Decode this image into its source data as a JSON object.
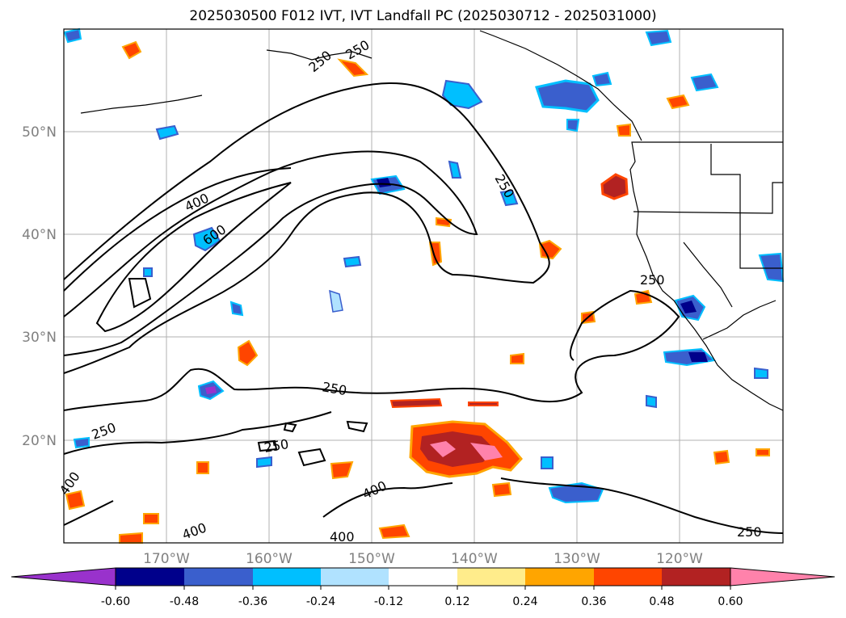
{
  "title": "2025030500 F012 IVT, IVT Landfall PC (2025030712 - 2025031000)",
  "map": {
    "lat_labels": [
      "50°N",
      "40°N",
      "30°N",
      "20°N"
    ],
    "lon_labels": [
      "170°W",
      "160°W",
      "150°W",
      "140°W",
      "130°W",
      "120°W"
    ],
    "gridlines": true
  },
  "contours": {
    "color": "#000000",
    "labels": [
      "250",
      "250",
      "250",
      "250",
      "250",
      "250",
      "250",
      "250",
      "400",
      "400",
      "400",
      "400",
      "400",
      "600"
    ]
  },
  "colorbar": {
    "tick_labels": [
      "-0.60",
      "-0.48",
      "-0.36",
      "-0.24",
      "-0.12",
      "0.12",
      "0.24",
      "0.36",
      "0.48",
      "0.60"
    ],
    "colors": [
      "#9932cc",
      "#00008b",
      "#3a5fcd",
      "#00bfff",
      "#b0e2ff",
      "#ffffff",
      "#ffec8b",
      "#ffa500",
      "#ff4500",
      "#b22222",
      "#ff82ab"
    ],
    "extend": "both"
  }
}
